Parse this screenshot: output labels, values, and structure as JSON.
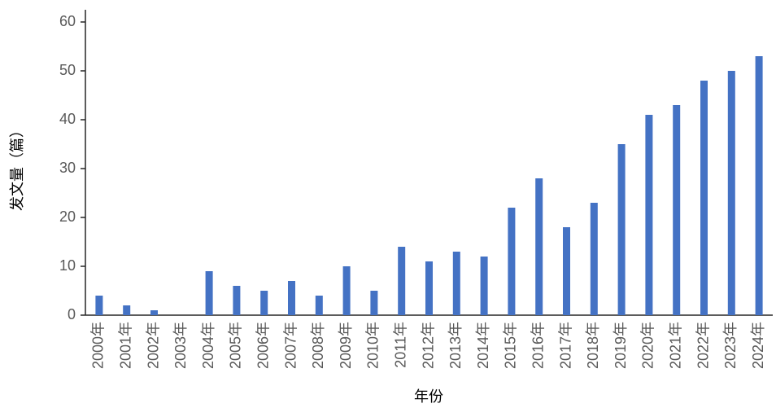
{
  "chart_data": {
    "type": "bar",
    "categories": [
      "2000年",
      "2001年",
      "2002年",
      "2003年",
      "2004年",
      "2005年",
      "2006年",
      "2007年",
      "2008年",
      "2009年",
      "2010年",
      "2011年",
      "2012年",
      "2013年",
      "2014年",
      "2015年",
      "2016年",
      "2017年",
      "2018年",
      "2019年",
      "2020年",
      "2021年",
      "2022年",
      "2023年",
      "2024年"
    ],
    "values": [
      4,
      2,
      1,
      0,
      9,
      6,
      5,
      7,
      4,
      10,
      5,
      14,
      11,
      13,
      12,
      22,
      28,
      18,
      23,
      35,
      41,
      43,
      48,
      50,
      53
    ],
    "color": "#4472c4",
    "ylim": [
      0,
      60
    ],
    "yticks": [
      0,
      10,
      20,
      30,
      40,
      50,
      60
    ],
    "grid": false,
    "x_label": "年份",
    "y_label": "发文量（篇）"
  }
}
